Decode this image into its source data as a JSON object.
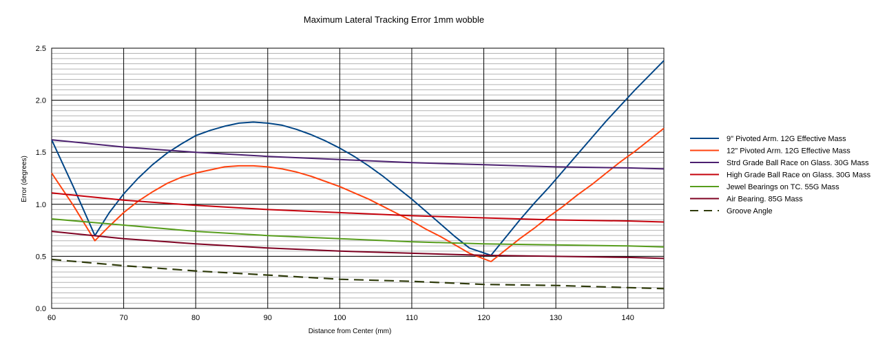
{
  "chart_data": {
    "type": "line",
    "title": "Maximum Lateral Tracking Error 1mm wobble",
    "xlabel": "Distance from Center (mm)",
    "ylabel": "Error (degrees)",
    "xlim": [
      60,
      145
    ],
    "ylim": [
      0,
      2.5
    ],
    "x_ticks": [
      60,
      70,
      80,
      90,
      100,
      110,
      120,
      130,
      140
    ],
    "y_ticks": [
      0.0,
      0.5,
      1.0,
      1.5,
      2.0,
      2.5
    ],
    "x_tick_labels": [
      "60",
      "70",
      "80",
      "90",
      "100",
      "110",
      "120",
      "130",
      "140"
    ],
    "y_tick_labels": [
      "0.0",
      "0.5",
      "1.0",
      "1.5",
      "2.0",
      "2.5"
    ],
    "grid": "major and minor",
    "legend_position": "right",
    "series": [
      {
        "name": "9\" Pivoted Arm. 12G Effective Mass",
        "color": "#004586",
        "dashed": false,
        "x": [
          60,
          63,
          66,
          68,
          70,
          72,
          74,
          76,
          78,
          80,
          82,
          84,
          86,
          88,
          90,
          92,
          94,
          96,
          98,
          100,
          102,
          104,
          106,
          108,
          110,
          112,
          114,
          116,
          118,
          121,
          123,
          125,
          127,
          129,
          131,
          133,
          135,
          137,
          139,
          141,
          143,
          145
        ],
        "y": [
          1.62,
          1.17,
          0.7,
          0.92,
          1.1,
          1.25,
          1.38,
          1.49,
          1.58,
          1.66,
          1.71,
          1.75,
          1.78,
          1.79,
          1.78,
          1.76,
          1.72,
          1.67,
          1.61,
          1.54,
          1.46,
          1.37,
          1.27,
          1.16,
          1.05,
          0.93,
          0.81,
          0.69,
          0.58,
          0.51,
          0.68,
          0.85,
          1.01,
          1.16,
          1.32,
          1.48,
          1.64,
          1.8,
          1.95,
          2.1,
          2.24,
          2.38
        ]
      },
      {
        "name": "12\" Pivoted Arm. 12G Effective Mass",
        "color": "#ff420e",
        "dashed": false,
        "x": [
          60,
          63,
          66,
          68,
          70,
          72,
          74,
          76,
          78,
          80,
          82,
          84,
          86,
          88,
          90,
          92,
          94,
          96,
          98,
          100,
          102,
          104,
          106,
          108,
          110,
          112,
          114,
          116,
          118,
          121,
          123,
          125,
          127,
          129,
          131,
          133,
          135,
          137,
          139,
          141,
          143,
          145
        ],
        "y": [
          1.3,
          0.99,
          0.65,
          0.79,
          0.92,
          1.03,
          1.12,
          1.2,
          1.26,
          1.3,
          1.33,
          1.36,
          1.37,
          1.37,
          1.36,
          1.34,
          1.31,
          1.27,
          1.22,
          1.17,
          1.11,
          1.05,
          0.98,
          0.91,
          0.84,
          0.76,
          0.69,
          0.61,
          0.53,
          0.45,
          0.56,
          0.67,
          0.77,
          0.88,
          0.98,
          1.09,
          1.19,
          1.3,
          1.41,
          1.51,
          1.62,
          1.73
        ]
      },
      {
        "name": "Strd Grade Ball Race on Glass. 30G Mass",
        "color": "#4b1f6f",
        "dashed": false,
        "x": [
          60,
          70,
          80,
          90,
          100,
          110,
          120,
          130,
          140,
          145
        ],
        "y": [
          1.62,
          1.55,
          1.5,
          1.46,
          1.43,
          1.4,
          1.38,
          1.36,
          1.35,
          1.34
        ]
      },
      {
        "name": "High Grade Ball Race on Glass. 30G Mass",
        "color": "#c5000b",
        "dashed": false,
        "x": [
          60,
          70,
          80,
          90,
          100,
          110,
          120,
          130,
          140,
          145
        ],
        "y": [
          1.11,
          1.04,
          0.99,
          0.95,
          0.92,
          0.89,
          0.87,
          0.85,
          0.84,
          0.83
        ]
      },
      {
        "name": "Jewel Bearings on TC. 55G Mass",
        "color": "#579d1c",
        "dashed": false,
        "x": [
          60,
          70,
          80,
          90,
          100,
          110,
          120,
          130,
          140,
          145
        ],
        "y": [
          0.86,
          0.8,
          0.74,
          0.7,
          0.67,
          0.64,
          0.62,
          0.61,
          0.6,
          0.59
        ]
      },
      {
        "name": "Air Bearing. 85G Mass",
        "color": "#7e0021",
        "dashed": false,
        "x": [
          60,
          70,
          80,
          90,
          100,
          110,
          120,
          130,
          140,
          145
        ],
        "y": [
          0.74,
          0.67,
          0.62,
          0.58,
          0.55,
          0.53,
          0.51,
          0.5,
          0.49,
          0.48
        ]
      },
      {
        "name": "Groove Angle",
        "color": "#2e3a0a",
        "dashed": true,
        "x": [
          60,
          70,
          80,
          90,
          100,
          110,
          120,
          130,
          140,
          145
        ],
        "y": [
          0.47,
          0.41,
          0.36,
          0.32,
          0.28,
          0.26,
          0.23,
          0.22,
          0.2,
          0.19
        ]
      }
    ]
  }
}
